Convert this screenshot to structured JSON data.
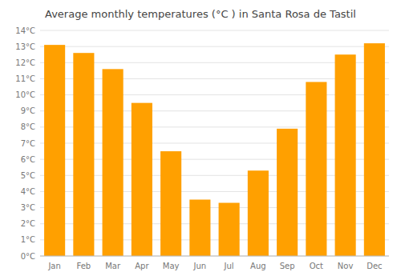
{
  "chart_data": {
    "type": "bar",
    "title": "Average monthly temperatures (°C ) in Santa Rosa de Tastil",
    "categories": [
      "Jan",
      "Feb",
      "Mar",
      "Apr",
      "May",
      "Jun",
      "Jul",
      "Aug",
      "Sep",
      "Oct",
      "Nov",
      "Dec"
    ],
    "values": [
      13.1,
      12.6,
      11.6,
      9.5,
      6.5,
      3.5,
      3.3,
      5.3,
      7.9,
      10.8,
      12.5,
      13.2
    ],
    "color": "#FFA000",
    "ylim": [
      0,
      14
    ],
    "yticks": [
      {
        "value": 0,
        "label": "0°C"
      },
      {
        "value": 1,
        "label": "1°C"
      },
      {
        "value": 2,
        "label": "2°C"
      },
      {
        "value": 3,
        "label": "3°C"
      },
      {
        "value": 4,
        "label": "4°C"
      },
      {
        "value": 5,
        "label": "5°C"
      },
      {
        "value": 6,
        "label": "6°C"
      },
      {
        "value": 7,
        "label": "7°C"
      },
      {
        "value": 8,
        "label": "8°C"
      },
      {
        "value": 9,
        "label": "9°C"
      },
      {
        "value": 10,
        "label": "10°C"
      },
      {
        "value": 11,
        "label": "11°C"
      },
      {
        "value": 12,
        "label": "12°C"
      },
      {
        "value": 13,
        "label": "13°C"
      },
      {
        "value": 14,
        "label": "14°C"
      }
    ],
    "grid": true
  }
}
